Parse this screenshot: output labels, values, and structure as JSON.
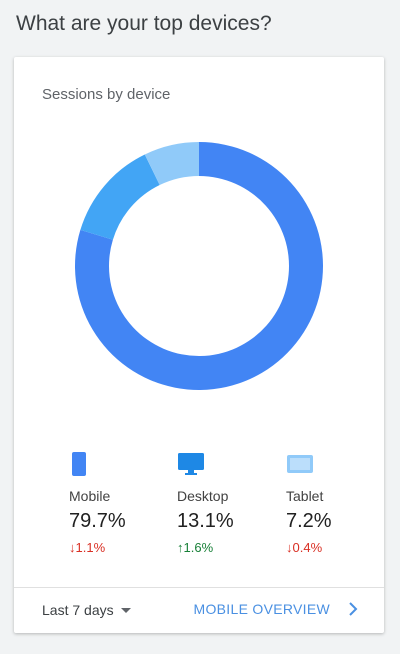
{
  "page": {
    "heading": "What are your top devices?"
  },
  "card": {
    "title": "Sessions by device"
  },
  "chart_data": {
    "type": "pie",
    "categories": [
      "Mobile",
      "Desktop",
      "Tablet"
    ],
    "values": [
      79.7,
      13.1,
      7.2
    ],
    "colors": [
      "#4285f4",
      "#42a5f5",
      "#90caf9"
    ],
    "title": "Sessions by device"
  },
  "legend": [
    {
      "name": "Mobile",
      "percent": "79.7%",
      "delta": "1.1%",
      "direction": "down",
      "icon": "smartphone-icon",
      "color": "#4285f4"
    },
    {
      "name": "Desktop",
      "percent": "13.1%",
      "delta": "1.6%",
      "direction": "up",
      "icon": "desktop-icon",
      "color": "#1e88e5"
    },
    {
      "name": "Tablet",
      "percent": "7.2%",
      "delta": "0.4%",
      "direction": "down",
      "icon": "tablet-icon",
      "color": "#90caf9"
    }
  ],
  "footer": {
    "range_label": "Last 7 days",
    "link_label": "MOBILE OVERVIEW"
  },
  "colors": {
    "link": "#4a90e2",
    "down": "#d93025",
    "up": "#188038"
  }
}
